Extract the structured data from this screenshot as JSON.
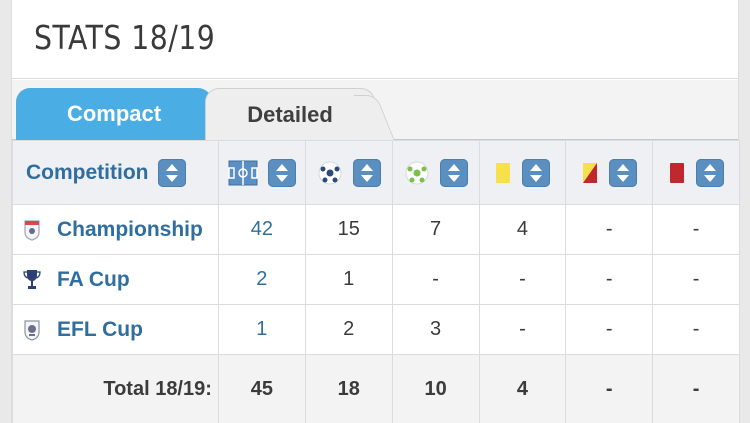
{
  "title": "STATS 18/19",
  "tabs": [
    {
      "label": "Compact",
      "active": true
    },
    {
      "label": "Detailed",
      "active": false
    }
  ],
  "header": {
    "competition_label": "Competition",
    "columns": [
      {
        "icon": "pitch-icon"
      },
      {
        "icon": "football-icon"
      },
      {
        "icon": "assist-football-icon"
      },
      {
        "icon": "yellow-card-icon"
      },
      {
        "icon": "second-yellow-card-icon"
      },
      {
        "icon": "red-card-icon"
      }
    ]
  },
  "rows": [
    {
      "competition": "Championship",
      "logo": "championship-logo-icon",
      "values": [
        "42",
        "15",
        "7",
        "4",
        "-",
        "-"
      ]
    },
    {
      "competition": "FA Cup",
      "logo": "fa-cup-logo-icon",
      "values": [
        "2",
        "1",
        "-",
        "-",
        "-",
        "-"
      ]
    },
    {
      "competition": "EFL Cup",
      "logo": "efl-cup-logo-icon",
      "values": [
        "1",
        "2",
        "3",
        "-",
        "-",
        "-"
      ]
    }
  ],
  "total": {
    "label": "Total 18/19:",
    "values": [
      "45",
      "18",
      "10",
      "4",
      "-",
      "-"
    ]
  },
  "colors": {
    "accent_blue": "#4aaee4",
    "link_blue": "#2f6e9f",
    "sort_button": "#5a8fbf",
    "yellow_card": "#f7e04a",
    "red_card": "#c0282e"
  }
}
